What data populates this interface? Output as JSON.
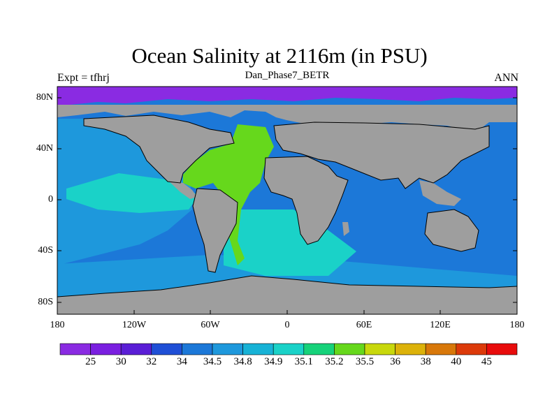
{
  "title": "Ocean Salinity at 2116m (in PSU)",
  "subtitle": "Dan_Phase7_BETR",
  "left_label": "Expt = tfhrj",
  "right_label": "ANN",
  "lat_ticks": [
    "80N",
    "40N",
    "0",
    "40S",
    "80S"
  ],
  "lon_ticks": [
    "180",
    "120W",
    "60W",
    "0",
    "60E",
    "120E",
    "180"
  ],
  "colorbar": {
    "colors": [
      "#8a2be2",
      "#7a1fe0",
      "#5a1ed6",
      "#1f4fd6",
      "#1c78d8",
      "#1e98dc",
      "#17b2d6",
      "#1ad2c8",
      "#16d27a",
      "#66d81c",
      "#c8d80c",
      "#dcb20a",
      "#d8780a",
      "#dc3a0a",
      "#e80c0c"
    ],
    "labels": [
      "25",
      "30",
      "32",
      "34",
      "34.5",
      "34.8",
      "34.9",
      "35.1",
      "35.2",
      "35.5",
      "36",
      "38",
      "40",
      "45"
    ]
  },
  "colors": {
    "land": "#9e9e9e",
    "arctic": "#8a2be2",
    "pacific": "#1fa0dc",
    "deep": "#1c78d8",
    "tropical": "#1ad2c8",
    "atlantic_high": "#66d81c",
    "atlantic_mid": "#16d27a"
  }
}
